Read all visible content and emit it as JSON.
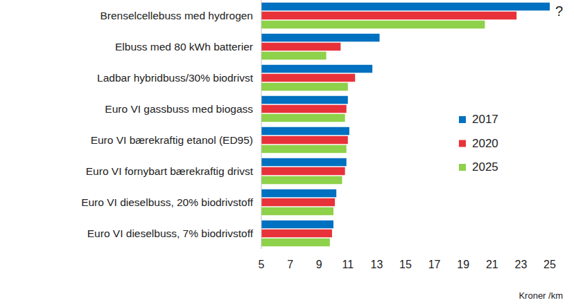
{
  "chart_data": {
    "type": "bar",
    "orientation": "horizontal",
    "categories": [
      "Brenselcellebuss med hydrogen",
      "Elbuss med 80 kWh batterier",
      "Ladbar hybridbuss/30% biodrivst",
      "Euro VI gassbuss med biogass",
      "Euro VI bærekraftig etanol (ED95)",
      "Euro VI fornybart bærekraftig drivst",
      "Euro VI dieselbuss, 20% biodrivstoff",
      "Euro VI dieselbuss, 7% biodrivstoff"
    ],
    "series": [
      {
        "name": "2017",
        "color": "#0070c0",
        "values": [
          25,
          13.2,
          12.7,
          11.0,
          11.1,
          10.9,
          10.2,
          10.0
        ]
      },
      {
        "name": "2020",
        "color": "#e8323a",
        "values": [
          22.7,
          10.5,
          11.5,
          10.9,
          11.0,
          10.8,
          10.1,
          9.9
        ]
      },
      {
        "name": "2025",
        "color": "#8ed14a",
        "values": [
          20.5,
          9.5,
          11.0,
          10.8,
          10.9,
          10.6,
          10.0,
          9.75
        ]
      }
    ],
    "xlabel": "Kroner /km",
    "xlim": [
      5,
      25
    ],
    "xticks": [
      5,
      7,
      9,
      11,
      13,
      15,
      17,
      19,
      21,
      23,
      25
    ],
    "annotation": "?",
    "grid": false,
    "legend": "right"
  }
}
